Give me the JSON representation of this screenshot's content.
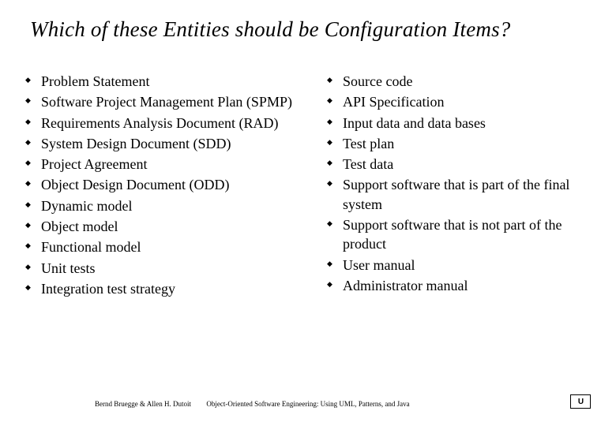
{
  "title": "Which of these Entities should be Configuration Items?",
  "left_items": [
    "Problem Statement",
    "Software Project Management Plan (SPMP)",
    "Requirements Analysis Document (RAD)",
    "System Design Document (SDD)",
    "Project Agreement",
    "Object Design Document  (ODD)",
    "Dynamic model",
    "Object model",
    "Functional model",
    "Unit tests",
    "Integration test strategy"
  ],
  "right_items": [
    "Source code",
    "API Specification",
    "Input data and data bases",
    "Test plan",
    "Test data",
    "Support software that is part of the final system",
    "Support software that is not part of the product",
    "User manual",
    "Administrator manual"
  ],
  "footer_left": "Bernd Bruegge & Allen H. Dutoit",
  "footer_center": "Object-Oriented Software Engineering: Using UML, Patterns, and Java",
  "logo_text": "U"
}
